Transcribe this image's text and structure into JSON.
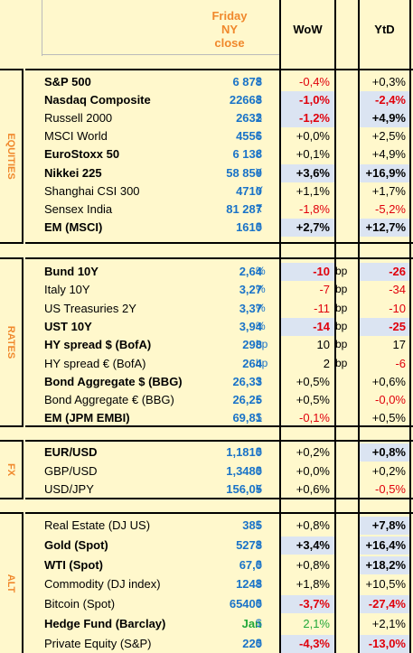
{
  "header": {
    "close_line1": "Friday",
    "close_line2": "NY",
    "close_line3": "close",
    "wow": "WoW",
    "ytd": "YtD"
  },
  "sections": {
    "equities": "EQUITIES",
    "rates": "RATES",
    "fx": "FX",
    "alt": "ALT"
  },
  "equities": [
    {
      "name": "S&P 500",
      "bold": true,
      "value": "6 878",
      "cur": "$",
      "wow": "-0,4%",
      "wow_neg": true,
      "wow_hl": false,
      "ytd": "+0,3%",
      "ytd_neg": false,
      "ytd_hl": false
    },
    {
      "name": "Nasdaq Composite",
      "bold": true,
      "value": "22668",
      "cur": "$",
      "wow": "-1,0%",
      "wow_neg": true,
      "wow_hl": true,
      "ytd": "-2,4%",
      "ytd_neg": true,
      "ytd_hl": true
    },
    {
      "name": "Russell 2000",
      "bold": false,
      "value": "2632",
      "cur": "$",
      "wow": "-1,2%",
      "wow_neg": true,
      "wow_hl": true,
      "ytd": "+4,9%",
      "ytd_neg": false,
      "ytd_hl": true
    },
    {
      "name": "MSCI World",
      "bold": false,
      "value": "4556",
      "cur": "$",
      "wow": "+0,0%",
      "wow_neg": false,
      "wow_hl": false,
      "ytd": "+2,5%",
      "ytd_neg": false,
      "ytd_hl": false
    },
    {
      "name": "EuroStoxx 50",
      "bold": true,
      "value": "6 138",
      "cur": "€",
      "wow": "+0,1%",
      "wow_neg": false,
      "wow_hl": false,
      "ytd": "+4,9%",
      "ytd_neg": false,
      "ytd_hl": false
    },
    {
      "name": "Nikkei 225",
      "bold": true,
      "value": "58 850",
      "cur": "¥",
      "wow": "+3,6%",
      "wow_neg": false,
      "wow_hl": true,
      "ytd": "+16,9%",
      "ytd_neg": false,
      "ytd_hl": true
    },
    {
      "name": "Shanghai CSI 300",
      "bold": false,
      "value": "4710",
      "cur": "Y",
      "wow": "+1,1%",
      "wow_neg": false,
      "wow_hl": false,
      "ytd": "+1,7%",
      "ytd_neg": false,
      "ytd_hl": false
    },
    {
      "name": "Sensex India",
      "bold": false,
      "value": "81 287",
      "cur": "₹",
      "wow": "-1,8%",
      "wow_neg": true,
      "wow_hl": false,
      "ytd": "-5,2%",
      "ytd_neg": true,
      "ytd_hl": false
    },
    {
      "name": "EM (MSCI)",
      "bold": true,
      "value": "1610",
      "cur": "$",
      "wow": "+2,7%",
      "wow_neg": false,
      "wow_hl": true,
      "ytd": "+12,7%",
      "ytd_neg": false,
      "ytd_hl": true
    }
  ],
  "rates": [
    {
      "name": "Bund 10Y",
      "bold": true,
      "value": "2,64",
      "cur": "%",
      "wow": "-10",
      "wowu": "bp",
      "wow_neg": true,
      "wow_hl": true,
      "ytd": "-26",
      "ytd_neg": true,
      "ytd_hl": true
    },
    {
      "name": "Italy 10Y",
      "bold": false,
      "value": "3,27",
      "cur": "%",
      "wow": "-7",
      "wowu": "bp",
      "wow_neg": true,
      "wow_hl": false,
      "ytd": "-34",
      "ytd_neg": true,
      "ytd_hl": false
    },
    {
      "name": "US Treasuries 2Y",
      "bold": false,
      "value": "3,37",
      "cur": "%",
      "wow": "-11",
      "wowu": "bp",
      "wow_neg": true,
      "wow_hl": false,
      "ytd": "-10",
      "ytd_neg": true,
      "ytd_hl": false
    },
    {
      "name": "UST 10Y",
      "bold": true,
      "value": "3,94",
      "cur": "%",
      "wow": "-14",
      "wowu": "bp",
      "wow_neg": true,
      "wow_hl": true,
      "ytd": "-25",
      "ytd_neg": true,
      "ytd_hl": true
    },
    {
      "name": "HY spread $ (BofA)",
      "bold": true,
      "value": "298",
      "cur": "bp",
      "wow": "10",
      "wowu": "bp",
      "wow_neg": false,
      "wow_hl": false,
      "ytd": "17",
      "ytd_neg": false,
      "ytd_hl": false
    },
    {
      "name": "HY spread € (BofA)",
      "bold": false,
      "value": "264",
      "cur": "bp",
      "wow": "2",
      "wowu": "bp",
      "wow_neg": false,
      "wow_hl": false,
      "ytd": "-6",
      "ytd_neg": true,
      "ytd_hl": false
    },
    {
      "name": "Bond Aggregate $ (BBG)",
      "bold": true,
      "value": "26,33",
      "cur": "$",
      "wow": "+0,5%",
      "wowu": "",
      "wow_neg": false,
      "wow_hl": false,
      "ytd": "+0,6%",
      "ytd_neg": false,
      "ytd_hl": false
    },
    {
      "name": "Bond Aggregate € (BBG)",
      "bold": false,
      "value": "26,25",
      "cur": "€",
      "wow": "+0,5%",
      "wowu": "",
      "wow_neg": false,
      "wow_hl": false,
      "ytd": "-0,0%",
      "ytd_neg": true,
      "ytd_hl": false
    },
    {
      "name": "EM (JPM EMBI)",
      "bold": true,
      "value": "69,81",
      "cur": "$",
      "wow": "-0,1%",
      "wowu": "",
      "wow_neg": true,
      "wow_hl": false,
      "ytd": "+0,5%",
      "ytd_neg": false,
      "ytd_hl": false
    }
  ],
  "fx": [
    {
      "name": "EUR/USD",
      "bold": true,
      "value": "1,1810",
      "cur": "$",
      "wow": "+0,2%",
      "wow_neg": false,
      "wow_hl": false,
      "ytd": "+0,8%",
      "ytd_neg": false,
      "ytd_hl": true
    },
    {
      "name": "GBP/USD",
      "bold": false,
      "value": "1,3480",
      "cur": "$",
      "wow": "+0,0%",
      "wow_neg": false,
      "wow_hl": false,
      "ytd": "+0,2%",
      "ytd_neg": false,
      "ytd_hl": false
    },
    {
      "name": "USD/JPY",
      "bold": false,
      "value": "156,05",
      "cur": "¥",
      "wow": "+0,6%",
      "wow_neg": false,
      "wow_hl": false,
      "ytd": "-0,5%",
      "ytd_neg": true,
      "ytd_hl": false
    }
  ],
  "alt": [
    {
      "name": "Real Estate (DJ US)",
      "bold": false,
      "value": "385",
      "cur": "$",
      "wow": "+0,8%",
      "wow_neg": false,
      "wow_hl": false,
      "ytd": "+7,8%",
      "ytd_neg": false,
      "ytd_hl": true
    },
    {
      "name": "Gold (Spot)",
      "bold": true,
      "value": "5278",
      "cur": "$",
      "wow": "+3,4%",
      "wow_neg": false,
      "wow_hl": true,
      "ytd": "+16,4%",
      "ytd_neg": false,
      "ytd_hl": true
    },
    {
      "name": "WTI (Spot)",
      "bold": true,
      "value": "67,0",
      "cur": "$",
      "wow": "+0,8%",
      "wow_neg": false,
      "wow_hl": false,
      "ytd": "+18,2%",
      "ytd_neg": false,
      "ytd_hl": true
    },
    {
      "name": "Commodity (DJ index)",
      "bold": false,
      "value": "1248",
      "cur": "$",
      "wow": "+1,8%",
      "wow_neg": false,
      "wow_hl": false,
      "ytd": "+10,5%",
      "ytd_neg": false,
      "ytd_hl": false
    },
    {
      "name": "Bitcoin (Spot)",
      "bold": false,
      "value": "65400",
      "cur": "$",
      "wow": "-3,7%",
      "wow_neg": true,
      "wow_hl": true,
      "ytd": "-27,4%",
      "ytd_neg": true,
      "ytd_hl": true
    },
    {
      "name": "Hedge Fund (Barclay)",
      "bold": true,
      "value": "Jan",
      "value_green": true,
      "cur": "$",
      "wow": "2,1%",
      "wow_green": true,
      "wow_neg": false,
      "wow_hl": false,
      "ytd": "+2,1%",
      "ytd_neg": false,
      "ytd_hl": false
    },
    {
      "name": "Private Equity (S&P)",
      "bold": false,
      "value": "220",
      "cur": "$",
      "wow": "-4,3%",
      "wow_neg": true,
      "wow_hl": true,
      "ytd": "-13,0%",
      "ytd_neg": true,
      "ytd_hl": true
    }
  ]
}
